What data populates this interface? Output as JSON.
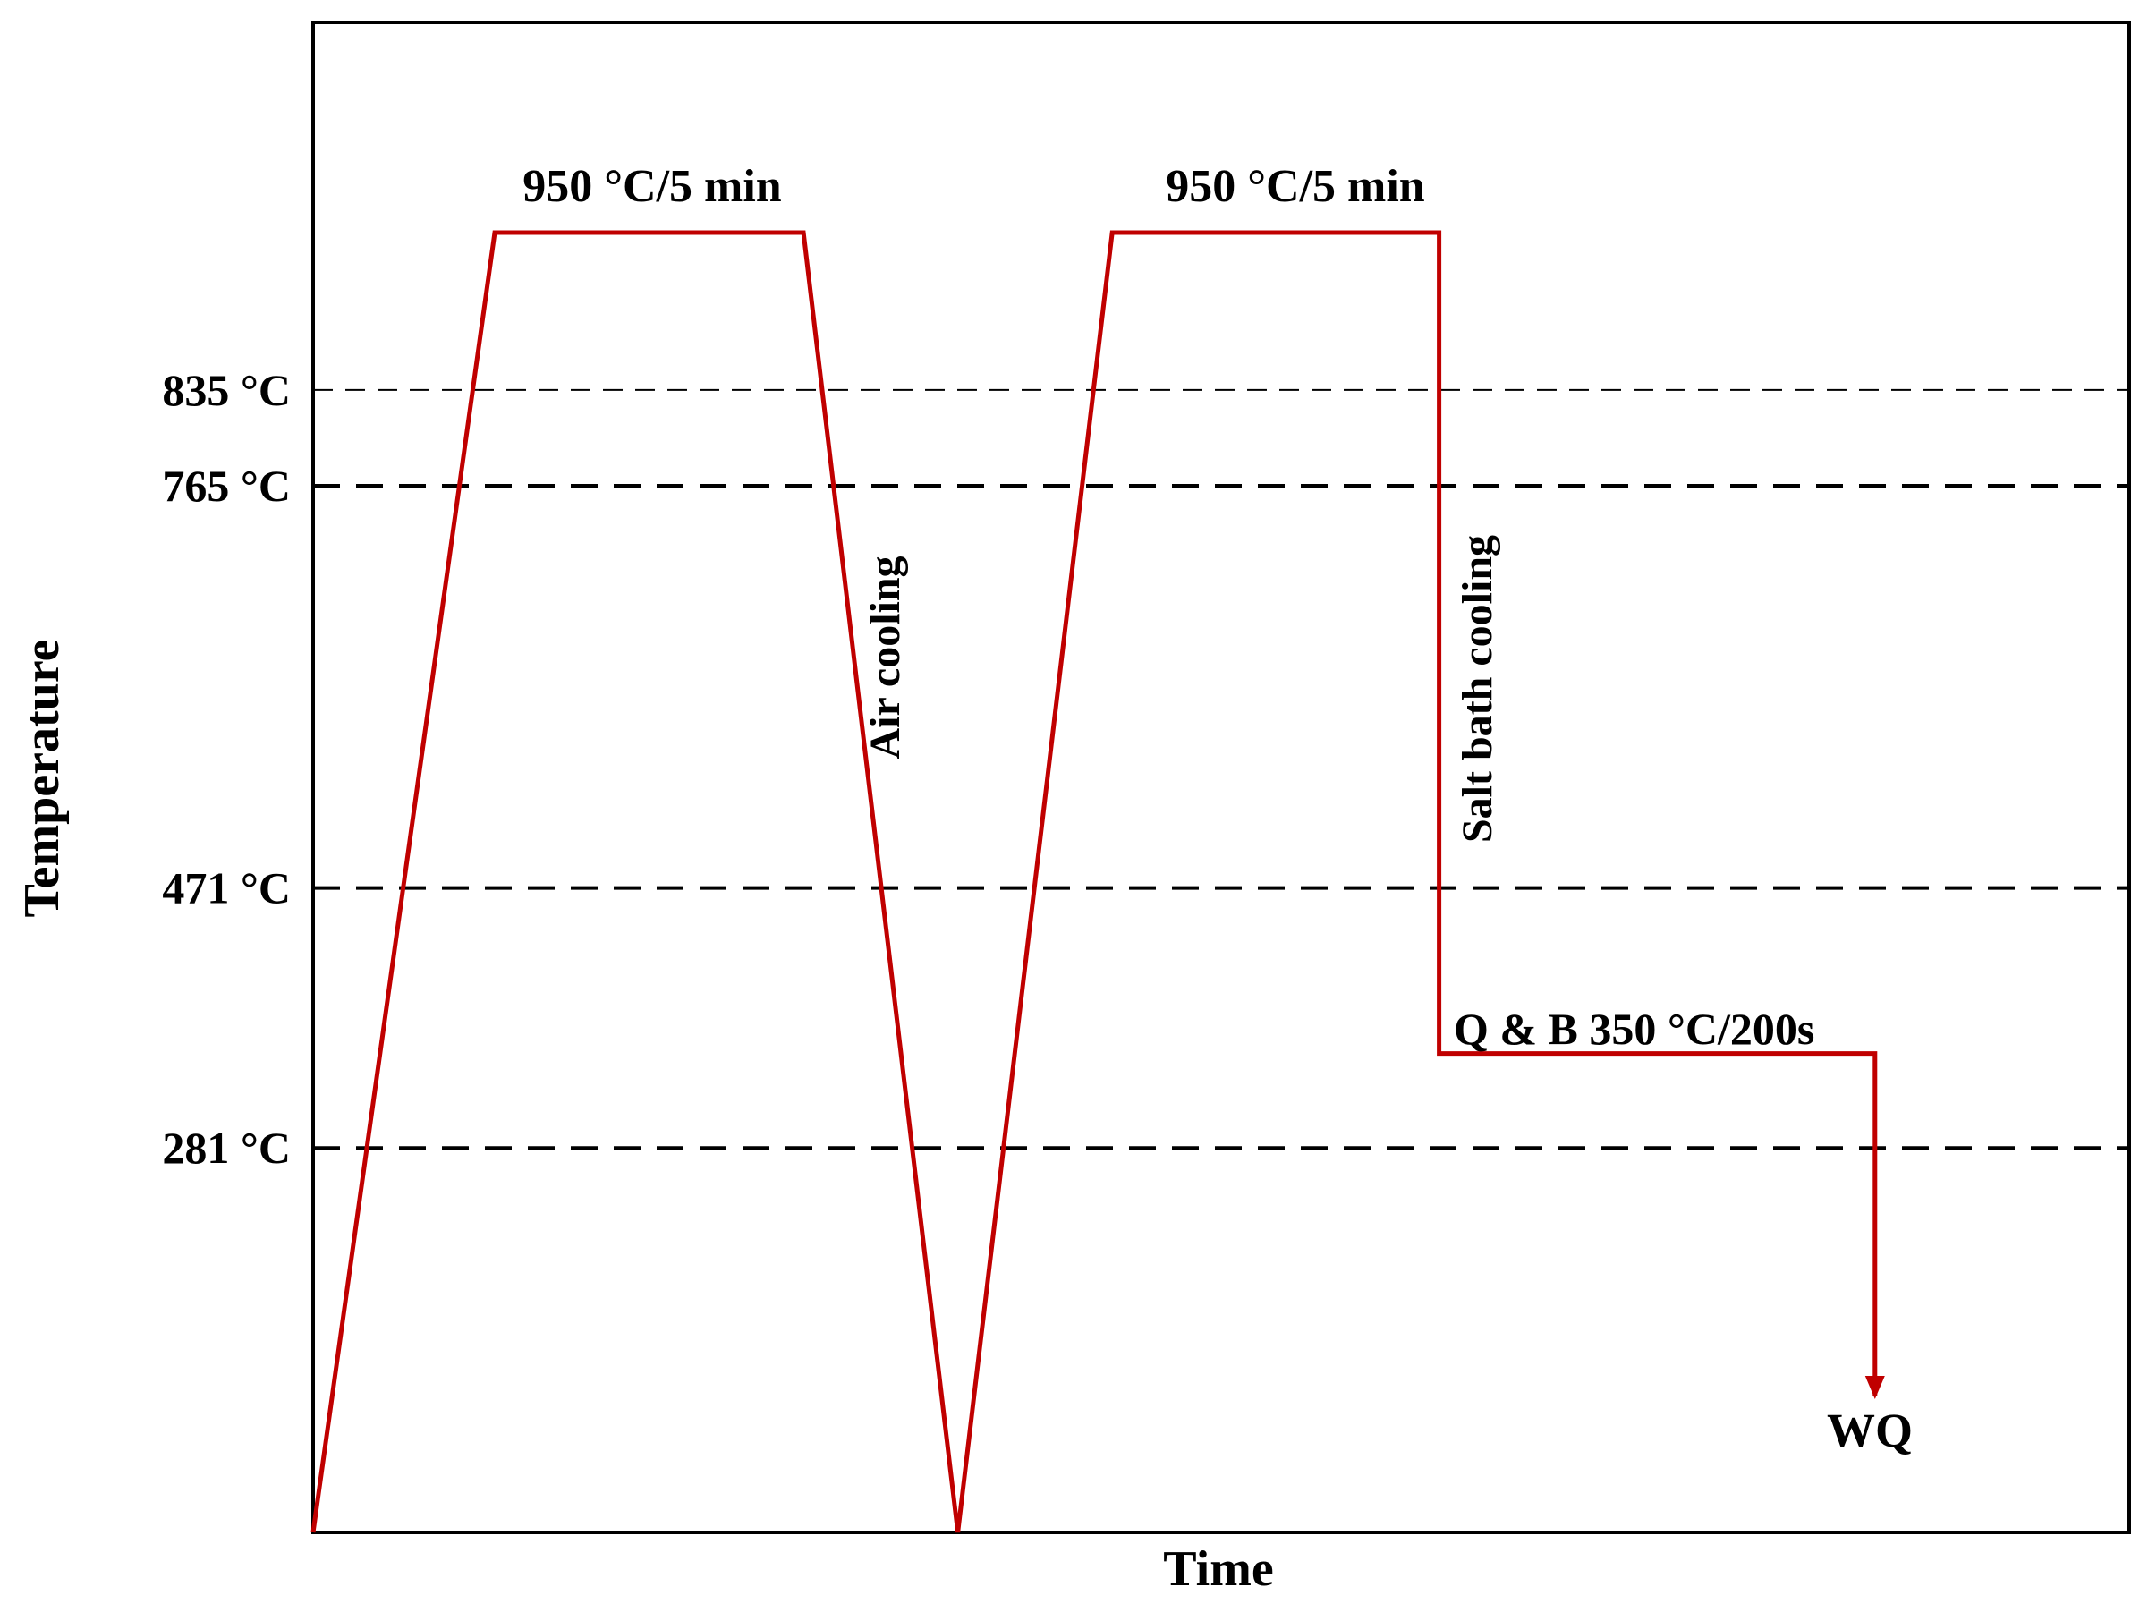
{
  "chart_data": {
    "type": "line",
    "title": "",
    "xlabel": "Time",
    "ylabel": "Temperature",
    "reference_lines": [
      {
        "label": "835 °C",
        "value": 835
      },
      {
        "label": "765 °C",
        "value": 765
      },
      {
        "label": "471 °C",
        "value": 471
      },
      {
        "label": "281 °C",
        "value": 281
      }
    ],
    "profile_points": [
      {
        "t": 0,
        "T": 0
      },
      {
        "t": 0.1,
        "T": 950
      },
      {
        "t": 0.27,
        "T": 950
      },
      {
        "t": 0.355,
        "T": 0
      },
      {
        "t": 0.44,
        "T": 950
      },
      {
        "t": 0.62,
        "T": 950
      },
      {
        "t": 0.62,
        "T": 350
      },
      {
        "t": 0.86,
        "T": 350
      },
      {
        "t": 0.86,
        "T": 100
      }
    ],
    "annotations": {
      "hold1": "950 °C/5 min",
      "hold2": "950 °C/5 min",
      "air_cooling": "Air cooling",
      "salt_bath": "Salt bath cooling",
      "qb": "Q & B 350 °C/200s",
      "wq": "WQ"
    },
    "colors": {
      "profile": "#c00000",
      "axes": "#000000",
      "grid": "#000000"
    }
  }
}
